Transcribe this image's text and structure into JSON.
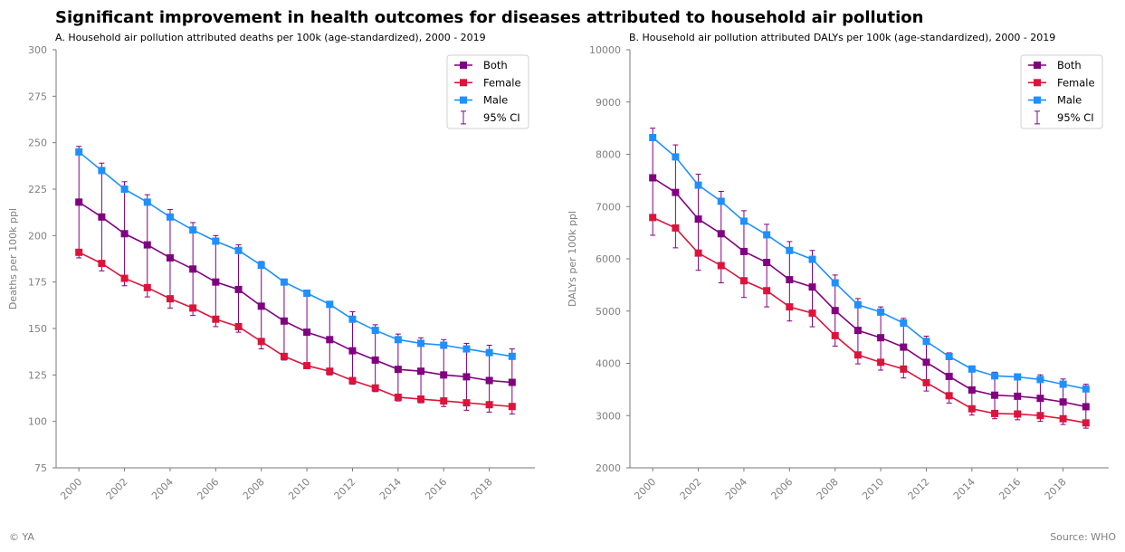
{
  "title": "Significant improvement in health outcomes for diseases attributed to household air pollution",
  "footer_left": "© YA",
  "footer_right": "Source: WHO",
  "colors": {
    "Both": "#800080",
    "Female": "#dc143c",
    "Male": "#1e90ff",
    "CI": "#800080"
  },
  "chart_data": [
    {
      "type": "line",
      "subtitle": "A. Household air pollution attributed deaths per 100k (age-standardized), 2000 - 2019",
      "ylabel": "Deaths per 100k ppl",
      "ylim": [
        75,
        300
      ],
      "yticks": [
        75,
        100,
        125,
        150,
        175,
        200,
        225,
        250,
        275,
        300
      ],
      "xticks": [
        2000,
        2002,
        2004,
        2006,
        2008,
        2010,
        2012,
        2014,
        2016,
        2018
      ],
      "legend_position": "top-right",
      "legend_ci_label": "95% CI",
      "x": [
        2000,
        2001,
        2002,
        2003,
        2004,
        2005,
        2006,
        2007,
        2008,
        2009,
        2010,
        2011,
        2012,
        2013,
        2014,
        2015,
        2016,
        2017,
        2018,
        2019
      ],
      "series": [
        {
          "name": "Both",
          "values": [
            218,
            210,
            201,
            195,
            188,
            182,
            175,
            171,
            162,
            154,
            148,
            144,
            138,
            133,
            128,
            127,
            125,
            124,
            122,
            121
          ]
        },
        {
          "name": "Female",
          "values": [
            191,
            185,
            177,
            172,
            166,
            161,
            155,
            151,
            143,
            135,
            130,
            127,
            122,
            118,
            113,
            112,
            111,
            110,
            109,
            108
          ]
        },
        {
          "name": "Male",
          "values": [
            245,
            235,
            225,
            218,
            210,
            203,
            197,
            192,
            184,
            175,
            169,
            163,
            155,
            149,
            144,
            142,
            141,
            139,
            137,
            135
          ]
        }
      ],
      "ci": {
        "lower": [
          188,
          181,
          173,
          167,
          161,
          157,
          151,
          148,
          139,
          133,
          129,
          125,
          120,
          116,
          111,
          110,
          108,
          106,
          105,
          104
        ],
        "upper": [
          248,
          239,
          229,
          222,
          214,
          207,
          200,
          195,
          186,
          176,
          170,
          164,
          159,
          152,
          147,
          145,
          144,
          142,
          141,
          139
        ]
      }
    },
    {
      "type": "line",
      "subtitle": "B. Household air pollution attributed DALYs per 100k (age-standardized), 2000 - 2019",
      "ylabel": "DALYs per 100k ppl",
      "ylim": [
        2000,
        10000
      ],
      "yticks": [
        2000,
        3000,
        4000,
        5000,
        6000,
        7000,
        8000,
        9000,
        10000
      ],
      "xticks": [
        2000,
        2002,
        2004,
        2006,
        2008,
        2010,
        2012,
        2014,
        2016,
        2018
      ],
      "legend_position": "top-right",
      "legend_ci_label": "95% CI",
      "x": [
        2000,
        2001,
        2002,
        2003,
        2004,
        2005,
        2006,
        2007,
        2008,
        2009,
        2010,
        2011,
        2012,
        2013,
        2014,
        2015,
        2016,
        2017,
        2018,
        2019
      ],
      "series": [
        {
          "name": "Both",
          "values": [
            7550,
            7270,
            6760,
            6480,
            6140,
            5930,
            5600,
            5460,
            5010,
            4630,
            4490,
            4310,
            4020,
            3750,
            3490,
            3390,
            3370,
            3330,
            3260,
            3170
          ]
        },
        {
          "name": "Female",
          "values": [
            6790,
            6590,
            6110,
            5870,
            5580,
            5390,
            5080,
            4960,
            4530,
            4160,
            4020,
            3890,
            3630,
            3380,
            3130,
            3040,
            3030,
            3000,
            2940,
            2860
          ]
        },
        {
          "name": "Male",
          "values": [
            8320,
            7950,
            7410,
            7100,
            6720,
            6460,
            6160,
            5990,
            5540,
            5120,
            4980,
            4770,
            4420,
            4130,
            3890,
            3760,
            3740,
            3690,
            3600,
            3510
          ]
        }
      ],
      "ci": {
        "lower": [
          6450,
          6210,
          5780,
          5540,
          5260,
          5080,
          4810,
          4700,
          4330,
          3990,
          3870,
          3720,
          3470,
          3240,
          3010,
          2940,
          2920,
          2890,
          2830,
          2760
        ],
        "upper": [
          8500,
          8180,
          7620,
          7290,
          6920,
          6660,
          6330,
          6160,
          5690,
          5240,
          5080,
          4860,
          4520,
          4200,
          3950,
          3830,
          3800,
          3780,
          3700,
          3600
        ]
      }
    }
  ]
}
